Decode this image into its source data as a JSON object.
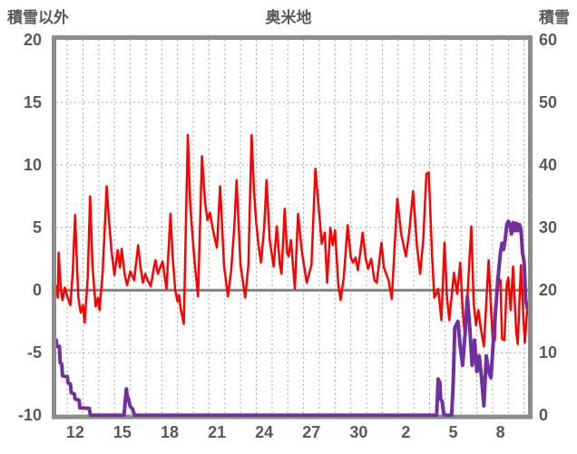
{
  "header": {
    "left_axis_title": "積雪以外",
    "title": "奥米地",
    "right_axis_title": "積雪"
  },
  "chart_data": {
    "type": "line",
    "title": "奥米地",
    "left_axis": {
      "label": "積雪以外",
      "range": [
        -10,
        20
      ],
      "ticks": [
        "20",
        "15",
        "10",
        "5",
        "0",
        "-5",
        "-10"
      ],
      "tick_values": [
        20,
        15,
        10,
        5,
        0,
        -5,
        -10
      ]
    },
    "right_axis": {
      "label": "積雪",
      "range": [
        0,
        60
      ],
      "ticks": [
        "60",
        "50",
        "40",
        "30",
        "20",
        "10",
        "0"
      ]
    },
    "x_axis": {
      "tick_labels": [
        "12",
        "15",
        "18",
        "21",
        "24",
        "27",
        "30",
        "2",
        "5",
        "8"
      ],
      "tick_days": [
        12,
        15,
        18,
        21,
        24,
        27,
        30,
        33,
        36,
        39
      ],
      "day_range": [
        10.8,
        40.75
      ],
      "gridline_start": 11.5,
      "gridline_step": 1,
      "gridline_end": 40.5
    },
    "grid": "dashed",
    "legend": "none",
    "colors": {
      "frame": "#8c8c8c",
      "grid": "#a8a8a8",
      "zero_line": "#808080",
      "text": "#595959",
      "background": "#ffffff",
      "series_left": "#ff0000",
      "series_right": "#7030a0"
    },
    "series": [
      {
        "name": "積雪以外",
        "axis": "left",
        "color": "#ff0000",
        "width": 2.5,
        "points": [
          [
            10.8,
            0.3
          ],
          [
            10.9,
            -0.6
          ],
          [
            10.95,
            3.0
          ],
          [
            11.1,
            0.0
          ],
          [
            11.2,
            -0.8
          ],
          [
            11.35,
            0.2
          ],
          [
            11.5,
            -0.5
          ],
          [
            11.7,
            -1.2
          ],
          [
            11.85,
            1.5
          ],
          [
            12.0,
            6.0
          ],
          [
            12.1,
            2.5
          ],
          [
            12.2,
            -0.5
          ],
          [
            12.35,
            -1.8
          ],
          [
            12.5,
            -1.2
          ],
          [
            12.6,
            -2.6
          ],
          [
            12.8,
            1.0
          ],
          [
            12.95,
            7.5
          ],
          [
            13.1,
            2.0
          ],
          [
            13.3,
            -1.3
          ],
          [
            13.45,
            -0.6
          ],
          [
            13.55,
            -1.6
          ],
          [
            13.75,
            1.5
          ],
          [
            14.0,
            8.3
          ],
          [
            14.15,
            5.5
          ],
          [
            14.3,
            3.2
          ],
          [
            14.5,
            1.2
          ],
          [
            14.7,
            3.2
          ],
          [
            14.85,
            1.8
          ],
          [
            14.95,
            3.3
          ],
          [
            15.15,
            1.2
          ],
          [
            15.3,
            0.4
          ],
          [
            15.5,
            1.5
          ],
          [
            15.75,
            0.8
          ],
          [
            16.0,
            3.6
          ],
          [
            16.15,
            1.8
          ],
          [
            16.3,
            0.6
          ],
          [
            16.45,
            1.3
          ],
          [
            16.6,
            0.8
          ],
          [
            16.8,
            0.3
          ],
          [
            17.0,
            1.8
          ],
          [
            17.1,
            2.4
          ],
          [
            17.25,
            1.3
          ],
          [
            17.4,
            1.8
          ],
          [
            17.55,
            2.3
          ],
          [
            17.8,
            0.1
          ],
          [
            18.05,
            6.1
          ],
          [
            18.2,
            2.5
          ],
          [
            18.35,
            0.0
          ],
          [
            18.5,
            -0.9
          ],
          [
            18.6,
            -0.4
          ],
          [
            18.7,
            -1.5
          ],
          [
            18.9,
            -2.7
          ],
          [
            19.15,
            12.4
          ],
          [
            19.3,
            7.0
          ],
          [
            19.4,
            5.2
          ],
          [
            19.6,
            2.0
          ],
          [
            19.8,
            -0.5
          ],
          [
            20.05,
            10.7
          ],
          [
            20.25,
            7.0
          ],
          [
            20.4,
            5.6
          ],
          [
            20.55,
            6.2
          ],
          [
            20.8,
            4.5
          ],
          [
            21.0,
            3.4
          ],
          [
            21.2,
            8.3
          ],
          [
            21.45,
            2.0
          ],
          [
            21.7,
            -0.5
          ],
          [
            21.9,
            1.5
          ],
          [
            22.1,
            5.0
          ],
          [
            22.25,
            8.8
          ],
          [
            22.5,
            2.0
          ],
          [
            22.8,
            -0.6
          ],
          [
            23.0,
            2.0
          ],
          [
            23.2,
            12.4
          ],
          [
            23.35,
            8.0
          ],
          [
            23.5,
            5.3
          ],
          [
            23.65,
            3.5
          ],
          [
            23.8,
            2.2
          ],
          [
            24.0,
            5.0
          ],
          [
            24.15,
            8.8
          ],
          [
            24.35,
            4.0
          ],
          [
            24.6,
            1.9
          ],
          [
            24.8,
            5.1
          ],
          [
            25.0,
            2.0
          ],
          [
            25.1,
            1.3
          ],
          [
            25.3,
            6.5
          ],
          [
            25.45,
            3.0
          ],
          [
            25.55,
            2.7
          ],
          [
            25.7,
            4.0
          ],
          [
            25.95,
            0.1
          ],
          [
            26.15,
            6.1
          ],
          [
            26.4,
            3.0
          ],
          [
            26.7,
            0.6
          ],
          [
            27.0,
            2.0
          ],
          [
            27.25,
            9.7
          ],
          [
            27.4,
            7.5
          ],
          [
            27.5,
            6.1
          ],
          [
            27.65,
            3.7
          ],
          [
            27.85,
            4.6
          ],
          [
            28.0,
            0.6
          ],
          [
            28.2,
            5.0
          ],
          [
            28.35,
            3.6
          ],
          [
            28.5,
            4.8
          ],
          [
            28.7,
            0.5
          ],
          [
            28.85,
            -0.8
          ],
          [
            29.05,
            1.0
          ],
          [
            29.3,
            5.2
          ],
          [
            29.5,
            2.6
          ],
          [
            29.65,
            2.2
          ],
          [
            29.8,
            2.6
          ],
          [
            29.95,
            1.6
          ],
          [
            30.1,
            3.0
          ],
          [
            30.25,
            4.6
          ],
          [
            30.45,
            2.5
          ],
          [
            30.6,
            1.7
          ],
          [
            30.8,
            2.5
          ],
          [
            31.0,
            0.8
          ],
          [
            31.15,
            0.6
          ],
          [
            31.45,
            3.8
          ],
          [
            31.6,
            1.8
          ],
          [
            31.75,
            1.3
          ],
          [
            31.9,
            0.8
          ],
          [
            32.1,
            -0.7
          ],
          [
            32.45,
            7.3
          ],
          [
            32.7,
            4.5
          ],
          [
            33.0,
            2.7
          ],
          [
            33.2,
            4.5
          ],
          [
            33.45,
            7.9
          ],
          [
            33.7,
            3.5
          ],
          [
            33.9,
            1.3
          ],
          [
            34.1,
            4.0
          ],
          [
            34.3,
            9.3
          ],
          [
            34.45,
            9.4
          ],
          [
            34.65,
            3.0
          ],
          [
            34.8,
            -0.6
          ],
          [
            34.95,
            -0.2
          ],
          [
            35.05,
            0.1
          ],
          [
            35.25,
            -2.4
          ],
          [
            35.45,
            3.8
          ],
          [
            35.6,
            -0.5
          ],
          [
            35.75,
            -2.4
          ],
          [
            35.9,
            -0.5
          ],
          [
            36.05,
            1.4
          ],
          [
            36.25,
            -0.3
          ],
          [
            36.45,
            2.2
          ],
          [
            36.6,
            -1.5
          ],
          [
            36.75,
            -3.8
          ],
          [
            36.95,
            0.5
          ],
          [
            37.15,
            5.1
          ],
          [
            37.3,
            -1.0
          ],
          [
            37.45,
            -2.8
          ],
          [
            37.6,
            -1.6
          ],
          [
            37.75,
            -3.0
          ],
          [
            37.95,
            -4.5
          ],
          [
            38.1,
            -1.0
          ],
          [
            38.25,
            2.4
          ],
          [
            38.5,
            -3.8
          ],
          [
            38.65,
            -4.0
          ],
          [
            38.8,
            1.0
          ],
          [
            39.0,
            0.8
          ],
          [
            39.1,
            -3.9
          ],
          [
            39.25,
            -4.0
          ],
          [
            39.4,
            0.5
          ],
          [
            39.5,
            1.0
          ],
          [
            39.65,
            -1.6
          ],
          [
            39.8,
            1.9
          ],
          [
            40.0,
            -3.3
          ],
          [
            40.1,
            -4.3
          ],
          [
            40.3,
            2.0
          ],
          [
            40.45,
            -2.0
          ],
          [
            40.55,
            -4.2
          ],
          [
            40.7,
            -1.5
          ]
        ]
      },
      {
        "name": "積雪",
        "axis": "right",
        "color": "#7030a0",
        "width": 4,
        "points": [
          [
            10.8,
            12
          ],
          [
            10.85,
            11
          ],
          [
            11.0,
            11
          ],
          [
            11.05,
            8.4
          ],
          [
            11.15,
            8.2
          ],
          [
            11.2,
            6.3
          ],
          [
            11.5,
            6.2
          ],
          [
            11.55,
            5.2
          ],
          [
            11.7,
            5.0
          ],
          [
            11.75,
            3.6
          ],
          [
            11.95,
            3.4
          ],
          [
            12.0,
            2.6
          ],
          [
            12.25,
            2.4
          ],
          [
            12.3,
            1.2
          ],
          [
            12.9,
            1.1
          ],
          [
            12.95,
            0.2
          ],
          [
            13.0,
            0
          ],
          [
            15.1,
            0
          ],
          [
            15.25,
            4.2
          ],
          [
            15.3,
            3.2
          ],
          [
            15.4,
            2.4
          ],
          [
            15.5,
            1.4
          ],
          [
            15.65,
            1.0
          ],
          [
            15.75,
            0.2
          ],
          [
            15.8,
            0
          ],
          [
            34.95,
            0
          ],
          [
            35.05,
            5.8
          ],
          [
            35.15,
            5.2
          ],
          [
            35.2,
            2.6
          ],
          [
            35.3,
            2.2
          ],
          [
            35.4,
            0.2
          ],
          [
            35.45,
            0
          ],
          [
            35.9,
            0
          ],
          [
            36.0,
            5
          ],
          [
            36.1,
            14
          ],
          [
            36.3,
            15
          ],
          [
            36.45,
            11
          ],
          [
            36.6,
            8
          ],
          [
            36.75,
            13
          ],
          [
            36.9,
            19
          ],
          [
            37.05,
            14
          ],
          [
            37.2,
            8
          ],
          [
            37.35,
            12
          ],
          [
            37.5,
            7
          ],
          [
            37.65,
            9.5
          ],
          [
            37.8,
            6
          ],
          [
            37.95,
            1.5
          ],
          [
            38.1,
            9.5
          ],
          [
            38.25,
            7
          ],
          [
            38.4,
            6
          ],
          [
            38.55,
            12
          ],
          [
            38.7,
            17
          ],
          [
            38.85,
            22
          ],
          [
            39.0,
            26
          ],
          [
            39.1,
            27.5
          ],
          [
            39.2,
            26.5
          ],
          [
            39.3,
            28
          ],
          [
            39.4,
            30.5
          ],
          [
            39.5,
            31
          ],
          [
            39.6,
            30.5
          ],
          [
            39.7,
            29
          ],
          [
            39.8,
            30.8
          ],
          [
            39.9,
            29.5
          ],
          [
            40.0,
            30.7
          ],
          [
            40.1,
            29.5
          ],
          [
            40.2,
            30.5
          ],
          [
            40.3,
            29.8
          ],
          [
            40.4,
            26
          ],
          [
            40.5,
            24.5
          ],
          [
            40.6,
            18.5
          ],
          [
            40.7,
            17.2
          ]
        ]
      }
    ]
  }
}
